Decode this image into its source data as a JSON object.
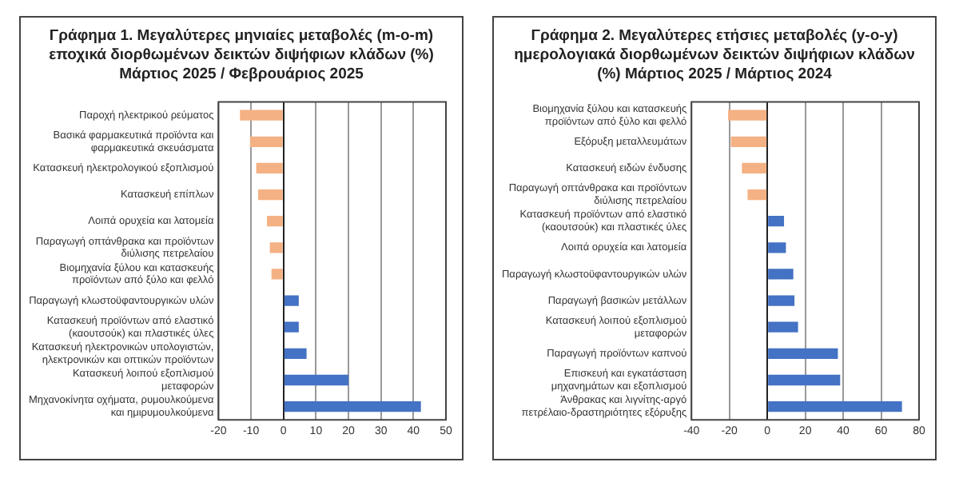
{
  "chart_data": [
    {
      "type": "bar",
      "orientation": "horizontal",
      "title": "Γράφημα 1. Μεγαλύτερες μηνιαίες μεταβολές (m-o-m) εποχικά διορθωμένων δεικτών διψήφιων κλάδων (%) Μάρτιος 2025 / Φεβρουάριος 2025",
      "categories": [
        "Παροχή ηλεκτρικού ρεύματος",
        "Βασικά φαρμακευτικά προϊόντα και φαρμακευτικά σκευάσματα",
        "Κατασκευή ηλεκτρολογικού εξοπλισμού",
        "Κατασκευή επίπλων",
        "Λοιπά ορυχεία και λατομεία",
        "Παραγωγή οπτάνθρακα και προϊόντων διύλισης πετρελαίου",
        "Βιομηχανία ξύλου και κατασκευής προϊόντων από ξύλο και φελλό",
        "Παραγωγή κλωστοϋφαντουργικών υλών",
        "Κατασκευή προϊόντων από ελαστικό (καουτσούκ) και πλαστικές ύλες",
        "Κατασκευή ηλεκτρονικών υπολογιστών, ηλεκτρονικών και οπτικών προϊόντων",
        "Κατασκευή λοιπού εξοπλισμού μεταφορών",
        "Μηχανοκίνητα οχήματα, ρυμουλκούμενα και ημιρυμουλκούμενα"
      ],
      "values": [
        -13.4,
        -10.3,
        -8.4,
        -7.8,
        -5.1,
        -4.2,
        -3.7,
        4.7,
        4.7,
        7.1,
        20.0,
        42.3
      ],
      "colors": [
        "#f4b183",
        "#f4b183",
        "#f4b183",
        "#f4b183",
        "#f4b183",
        "#f4b183",
        "#f4b183",
        "#4472c4",
        "#4472c4",
        "#4472c4",
        "#4472c4",
        "#4472c4"
      ],
      "xlim": [
        -20,
        50
      ],
      "xticks": [
        -20,
        -10,
        0,
        10,
        20,
        30,
        40,
        50
      ],
      "grid": "x"
    },
    {
      "type": "bar",
      "orientation": "horizontal",
      "title": "Γράφημα 2. Μεγαλύτερες ετήσιες μεταβολές (y-o-y) ημερολογιακά διορθωμένων δεικτών διψήφιων κλάδων (%) Μάρτιος 2025 / Μάρτιος  2024",
      "categories": [
        "Βιομηχανία ξύλου και κατασκευής προϊόντων από ξύλο και φελλό",
        "Εξόρυξη μεταλλευμάτων",
        "Κατασκευή ειδών ένδυσης",
        "Παραγωγή οπτάνθρακα και προϊόντων διύλισης πετρελαίου",
        "Κατασκευή προϊόντων από ελαστικό (καουτσούκ) και πλαστικές ύλες",
        "Λοιπά ορυχεία και λατομεία",
        "Παραγωγή κλωστοϋφαντουργικών υλών",
        "Παραγωγή βασικών μετάλλων",
        "Κατασκευή λοιπού εξοπλισμού μεταφορών",
        "Παραγωγή προϊόντων καπνού",
        "Επισκευή και εγκατάσταση μηχανημάτων και εξοπλισμού",
        "Άνθρακας και λιγνίτης-αργό πετρέλαιο-δραστηριότητες εξόρυξης"
      ],
      "values": [
        -20.7,
        -19.2,
        -13.4,
        -10.4,
        8.8,
        9.8,
        13.7,
        14.3,
        16.2,
        37.2,
        38.4,
        71.0
      ],
      "colors": [
        "#f4b183",
        "#f4b183",
        "#f4b183",
        "#f4b183",
        "#4472c4",
        "#4472c4",
        "#4472c4",
        "#4472c4",
        "#4472c4",
        "#4472c4",
        "#4472c4",
        "#4472c4"
      ],
      "xlim": [
        -40,
        80
      ],
      "xticks": [
        -40,
        -20,
        0,
        20,
        40,
        60,
        80
      ],
      "grid": "x"
    }
  ]
}
